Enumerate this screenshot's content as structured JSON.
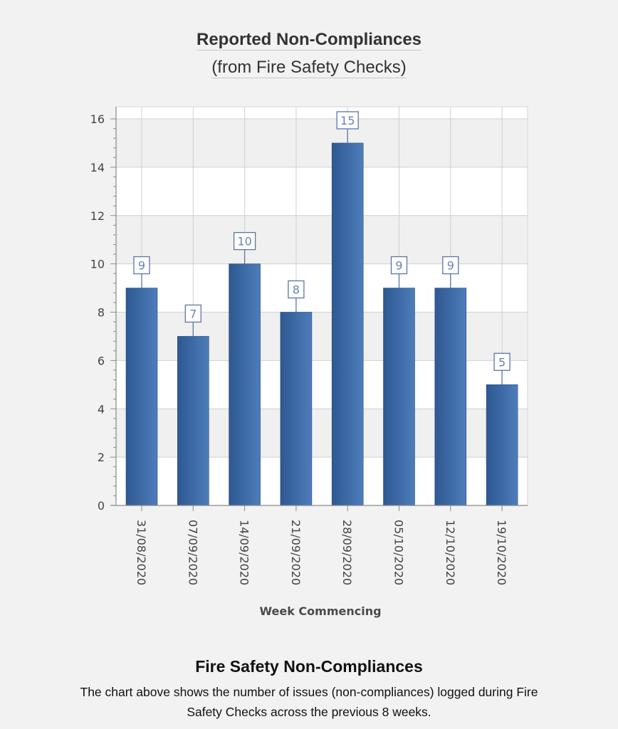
{
  "header": {
    "title": "Reported Non-Compliances",
    "subtitle": "(from Fire Safety Checks)"
  },
  "caption": {
    "title": "Fire Safety Non-Compliances",
    "text": "The chart above shows the number of issues (non-compliances) logged during Fire Safety Checks across the previous 8 weeks."
  },
  "colors": {
    "background": "#f2f2f2",
    "bar_dark": "#2e5891",
    "bar_light": "#4d7dbb",
    "label_border": "#5a76a8",
    "label_text": "#6b82b0",
    "band_gray": "#f0f0f0",
    "band_white": "#ffffff",
    "grid": "#d0d0d0"
  },
  "chart_data": {
    "type": "bar",
    "title": "Reported Non-Compliances",
    "subtitle": "(from Fire Safety Checks)",
    "xlabel": "Week Commencing",
    "ylabel": "",
    "categories": [
      "31/08/2020",
      "07/09/2020",
      "14/09/2020",
      "21/09/2020",
      "28/09/2020",
      "05/10/2020",
      "12/10/2020",
      "19/10/2020"
    ],
    "values": [
      9,
      7,
      10,
      8,
      15,
      9,
      9,
      5
    ],
    "ylim": [
      0,
      16.5
    ],
    "yticks": [
      0,
      2,
      4,
      6,
      8,
      10,
      12,
      14,
      16
    ],
    "grid": true,
    "data_labels": true,
    "legend": null
  }
}
